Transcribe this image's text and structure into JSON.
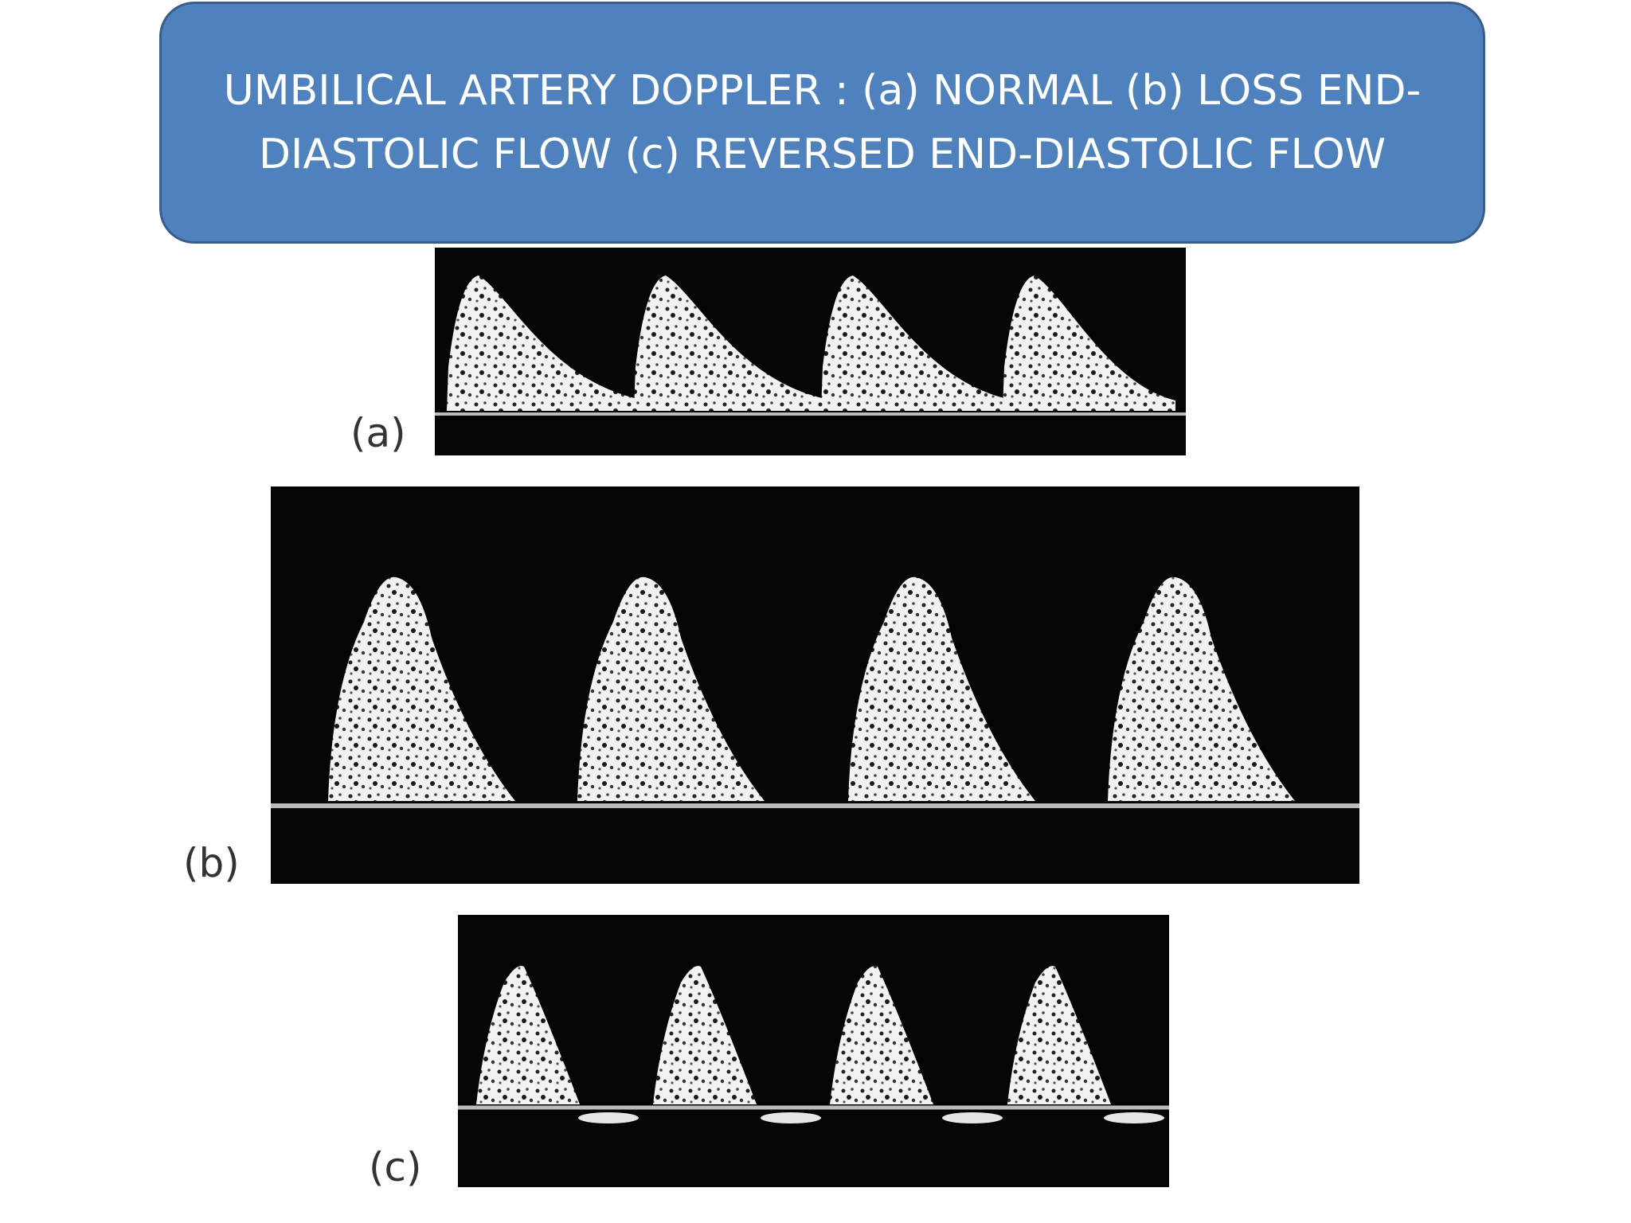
{
  "title": {
    "lines": [
      "UMBILICAL ARTERY DOPPLER : (a) NORMAL (b) LOSS END-",
      "DIASTOLIC FLOW (c) REVERSED END-DIASTOLIC FLOW"
    ]
  },
  "panels": [
    {
      "label": "(a)"
    },
    {
      "label": "(b)"
    },
    {
      "label": "(c)"
    }
  ]
}
